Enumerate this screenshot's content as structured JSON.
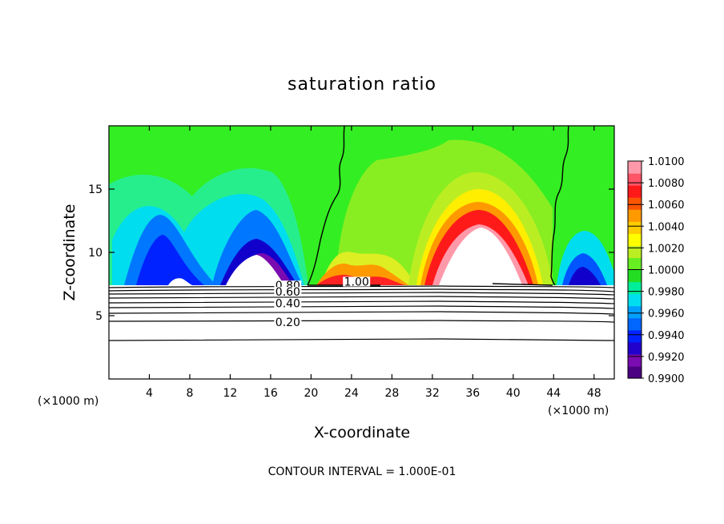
{
  "chart_data": {
    "type": "heatmap",
    "title": "saturation ratio",
    "xlabel": "X-coordinate",
    "ylabel": "Z-coordinate",
    "x_unit_left": "(×1000 m)",
    "x_unit_right": "(×1000 m)",
    "footer": "CONTOUR INTERVAL = 1.000E-01",
    "xlim": [
      0,
      50
    ],
    "ylim": [
      0,
      20
    ],
    "xticks": [
      4,
      8,
      12,
      16,
      20,
      24,
      28,
      32,
      36,
      40,
      44,
      48
    ],
    "yticks": [
      5,
      10,
      15
    ],
    "colorbar": {
      "levels": [
        "1.0100",
        "1.0080",
        "1.0060",
        "1.0040",
        "1.0020",
        "1.0000",
        "0.9980",
        "0.9960",
        "0.9940",
        "0.9920",
        "0.9900"
      ],
      "colors": [
        "#4b0082",
        "#7a0bb0",
        "#2200cc",
        "#0022ff",
        "#0066ff",
        "#00a0ff",
        "#00ddee",
        "#00ee99",
        "#22dd22",
        "#66ee22",
        "#bbee22",
        "#ffff00",
        "#ffcc00",
        "#ff9900",
        "#ff5500",
        "#ff1a1a",
        "#ff5566",
        "#ff99aa"
      ]
    },
    "contour_labels": [
      {
        "text": "1.00",
        "x": 24.5,
        "y": 7.5
      },
      {
        "text": "0.80",
        "x": 17.7,
        "y": 7.2
      },
      {
        "text": "0.60",
        "x": 17.7,
        "y": 6.7
      },
      {
        "text": "0.40",
        "x": 17.7,
        "y": 5.8
      },
      {
        "text": "0.20",
        "x": 17.7,
        "y": 4.3
      }
    ],
    "contour_levels": [
      0.2,
      0.4,
      0.6,
      0.8,
      1.0
    ]
  },
  "colors": {
    "background": "#33ee22"
  }
}
